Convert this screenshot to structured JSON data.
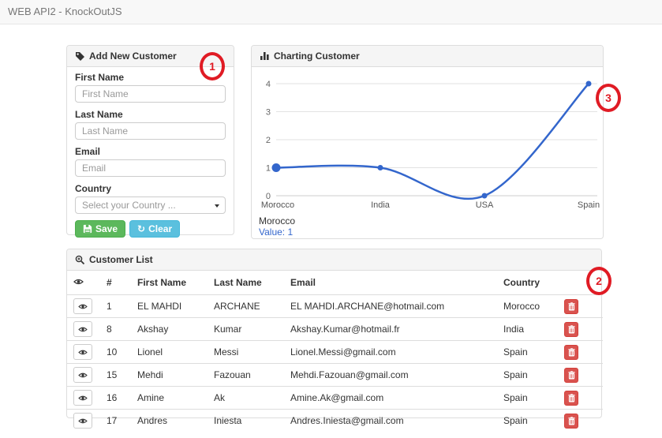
{
  "navbar": {
    "title": "WEB API2 - KnockOutJS"
  },
  "form_panel": {
    "title": "Add New Customer",
    "icon": "tag-icon",
    "fields": [
      {
        "label": "First Name",
        "placeholder": "First Name"
      },
      {
        "label": "Last Name",
        "placeholder": "Last Name"
      },
      {
        "label": "Email",
        "placeholder": "Email"
      },
      {
        "label": "Country",
        "placeholder": "Select your Country ..."
      }
    ],
    "save_label": "Save",
    "clear_label": "Clear",
    "save_icon": "floppy-disk-icon",
    "clear_icon": "refresh-icon",
    "refresh_glyph": "↻"
  },
  "chart_panel": {
    "title": "Charting Customer",
    "icon": "bar-chart-icon",
    "tooltip": {
      "category": "Morocco",
      "value_label": "Value:",
      "value": "1"
    }
  },
  "chart_data": {
    "type": "line",
    "categories": [
      "Morocco",
      "India",
      "USA",
      "Spain"
    ],
    "values": [
      1,
      1,
      0,
      4
    ],
    "yticks": [
      "0",
      "1",
      "2",
      "3",
      "4"
    ],
    "ylim": [
      0,
      4
    ],
    "title": "Charting Customer",
    "xlabel": "",
    "ylabel": "",
    "grid": true,
    "legend": "none",
    "line_color": "#3366cc",
    "selected_point": "Morocco",
    "selected_tooltip": "Morocco Value: 1"
  },
  "table_panel": {
    "title": "Customer List",
    "icon": "zoom-in-icon",
    "columns": {
      "view": "",
      "id": "#",
      "first": "First Name",
      "last": "Last Name",
      "email": "Email",
      "country": "Country",
      "action": ""
    },
    "rows": [
      {
        "id": "1",
        "first": "EL MAHDI",
        "last": "ARCHANE",
        "email": "EL MAHDI.ARCHANE@hotmail.com",
        "country": "Morocco"
      },
      {
        "id": "8",
        "first": "Akshay",
        "last": "Kumar",
        "email": "Akshay.Kumar@hotmail.fr",
        "country": "India"
      },
      {
        "id": "10",
        "first": "Lionel",
        "last": "Messi",
        "email": "Lionel.Messi@gmail.com",
        "country": "Spain"
      },
      {
        "id": "15",
        "first": "Mehdi",
        "last": "Fazouan",
        "email": "Mehdi.Fazouan@gmail.com",
        "country": "Spain"
      },
      {
        "id": "16",
        "first": "Amine",
        "last": "Ak",
        "email": "Amine.Ak@gmail.com",
        "country": "Spain"
      },
      {
        "id": "17",
        "first": "Andres",
        "last": "Iniesta",
        "email": "Andres.Iniesta@gmail.com",
        "country": "Spain"
      }
    ]
  },
  "annotations": [
    {
      "label": "1"
    },
    {
      "label": "2"
    },
    {
      "label": "3"
    }
  ],
  "colors": {
    "accent_line": "#3366cc",
    "success": "#5cb85c",
    "info": "#5bc0de",
    "danger": "#d9534f",
    "annotation_red": "#e01b24",
    "panel_heading_bg": "#f5f5f5",
    "navbar_bg": "#f8f8f8"
  }
}
